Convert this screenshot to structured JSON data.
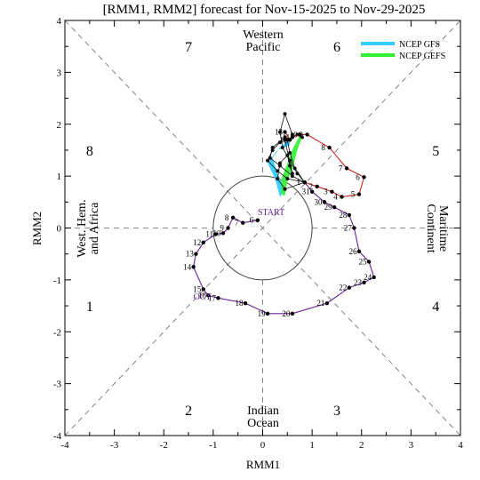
{
  "chart_data": {
    "type": "scatter",
    "title": "[RMM1, RMM2] forecast for Nov-15-2025 to Nov-29-2025",
    "xlabel": "RMM1",
    "ylabel": "RMM2",
    "xlim": [
      -4,
      4
    ],
    "ylim": [
      -4,
      4
    ],
    "xticks": [
      "-4",
      "-3",
      "-2",
      "-1",
      "0",
      "1",
      "2",
      "3",
      "4"
    ],
    "yticks": [
      "-4",
      "-3",
      "-2",
      "-1",
      "0",
      "1",
      "2",
      "3",
      "4"
    ],
    "grid": false,
    "legend_position": "top-right",
    "legend": [
      {
        "label": "NCEP GFS",
        "color": "#33ccff"
      },
      {
        "label": "NCEP GEFS",
        "color": "#33ee33"
      }
    ],
    "phase_numbers": [
      {
        "label": "1",
        "x": -3.5,
        "y": -1.5
      },
      {
        "label": "2",
        "x": -1.5,
        "y": -3.5
      },
      {
        "label": "3",
        "x": 1.5,
        "y": -3.5
      },
      {
        "label": "4",
        "x": 3.5,
        "y": -1.5
      },
      {
        "label": "5",
        "x": 3.5,
        "y": 1.5
      },
      {
        "label": "6",
        "x": 1.5,
        "y": 3.5
      },
      {
        "label": "7",
        "x": -1.5,
        "y": 3.5
      },
      {
        "label": "8",
        "x": -3.5,
        "y": 1.5
      }
    ],
    "region_labels": {
      "top": [
        "Western",
        "Pacific"
      ],
      "bottom": [
        "Indian",
        "Ocean"
      ],
      "left": [
        "West. Hem.",
        "and Africa"
      ],
      "right": [
        "Maritime",
        "Continent"
      ]
    },
    "annotations": [
      {
        "text": "START",
        "x": -0.1,
        "y": 0.25,
        "color": "#662299"
      },
      {
        "text": "OCT",
        "x": -1.4,
        "y": -1.38,
        "color": "#662299"
      }
    ],
    "observed": {
      "color": "#662299",
      "points": [
        {
          "label": "6",
          "x": -0.1,
          "y": 0.15
        },
        {
          "label": "7",
          "x": -0.4,
          "y": 0.1
        },
        {
          "label": "8",
          "x": -0.6,
          "y": 0.2
        },
        {
          "label": "9",
          "x": -0.7,
          "y": 0.0
        },
        {
          "label": "10",
          "x": -0.8,
          "y": -0.1
        },
        {
          "label": "11",
          "x": -0.95,
          "y": -0.12
        },
        {
          "label": "12",
          "x": -1.2,
          "y": -0.28
        },
        {
          "label": "13",
          "x": -1.35,
          "y": -0.5
        },
        {
          "label": "14",
          "x": -1.4,
          "y": -0.75
        },
        {
          "label": "15",
          "x": -1.2,
          "y": -1.18
        },
        {
          "label": "16",
          "x": -1.1,
          "y": -1.3
        },
        {
          "label": "17",
          "x": -0.9,
          "y": -1.35
        },
        {
          "label": "18",
          "x": -0.35,
          "y": -1.45
        },
        {
          "label": "19",
          "x": 0.1,
          "y": -1.65
        },
        {
          "label": "20",
          "x": 0.6,
          "y": -1.65
        },
        {
          "label": "21",
          "x": 1.3,
          "y": -1.45
        },
        {
          "label": "22",
          "x": 1.75,
          "y": -1.15
        },
        {
          "label": "23",
          "x": 2.05,
          "y": -1.05
        },
        {
          "label": "24",
          "x": 2.25,
          "y": -0.95
        },
        {
          "label": "25",
          "x": 2.15,
          "y": -0.65
        },
        {
          "label": "26",
          "x": 1.95,
          "y": -0.45
        },
        {
          "label": "27",
          "x": 1.85,
          "y": 0.0
        },
        {
          "label": "28",
          "x": 1.75,
          "y": 0.25
        },
        {
          "label": "29",
          "x": 1.45,
          "y": 0.4
        },
        {
          "label": "30",
          "x": 1.25,
          "y": 0.5
        },
        {
          "label": "31",
          "x": 1.0,
          "y": 0.7
        },
        {
          "label": "1",
          "x": 0.85,
          "y": 0.88
        }
      ]
    },
    "forecast": {
      "color": "#cc2222",
      "points": [
        {
          "label": "1",
          "x": 0.85,
          "y": 0.88
        },
        {
          "label": "2",
          "x": 1.1,
          "y": 0.8
        },
        {
          "label": "3",
          "x": 1.4,
          "y": 0.7
        },
        {
          "label": "4",
          "x": 1.6,
          "y": 0.6
        },
        {
          "label": "5",
          "x": 1.95,
          "y": 0.65
        },
        {
          "label": "6",
          "x": 2.05,
          "y": 0.98
        },
        {
          "label": "7",
          "x": 1.7,
          "y": 1.15
        },
        {
          "label": "8",
          "x": 1.35,
          "y": 1.55
        },
        {
          "label": "9",
          "x": 0.9,
          "y": 1.8
        },
        {
          "label": "10",
          "x": 0.75,
          "y": 1.8
        },
        {
          "label": "11",
          "x": 0.6,
          "y": 1.75
        },
        {
          "label": "12",
          "x": 0.55,
          "y": 1.7
        },
        {
          "label": "13",
          "x": 0.45,
          "y": 1.85
        }
      ]
    },
    "ensemble_members": [
      {
        "color": "#111111",
        "points": [
          [
            0.85,
            0.88
          ],
          [
            0.6,
            1.0
          ],
          [
            0.35,
            1.2
          ],
          [
            0.15,
            1.35
          ],
          [
            0.2,
            1.55
          ],
          [
            0.45,
            1.75
          ],
          [
            0.55,
            1.7
          ]
        ]
      },
      {
        "color": "#111111",
        "points": [
          [
            0.85,
            0.88
          ],
          [
            0.7,
            1.05
          ],
          [
            0.55,
            1.3
          ],
          [
            0.4,
            1.55
          ],
          [
            0.35,
            1.85
          ],
          [
            0.45,
            2.2
          ],
          [
            0.6,
            1.8
          ]
        ]
      },
      {
        "color": "#111111",
        "points": [
          [
            0.85,
            0.88
          ],
          [
            0.5,
            0.95
          ],
          [
            0.3,
            1.1
          ],
          [
            0.1,
            1.3
          ],
          [
            0.2,
            1.5
          ],
          [
            0.35,
            1.65
          ],
          [
            0.5,
            1.7
          ]
        ]
      },
      {
        "color": "#111111",
        "points": [
          [
            0.85,
            0.88
          ],
          [
            0.65,
            1.15
          ],
          [
            0.55,
            1.45
          ],
          [
            0.5,
            1.7
          ],
          [
            0.7,
            1.8
          ],
          [
            0.8,
            1.75
          ]
        ]
      },
      {
        "color": "#111111",
        "points": [
          [
            0.85,
            0.88
          ],
          [
            0.45,
            0.75
          ],
          [
            0.3,
            0.95
          ],
          [
            0.35,
            1.25
          ],
          [
            0.5,
            1.4
          ],
          [
            0.55,
            1.2
          ],
          [
            0.6,
            1.05
          ],
          [
            0.45,
            1.7
          ]
        ]
      }
    ],
    "gfs_band": [
      [
        0.35,
        0.6
      ],
      [
        0.25,
        0.95
      ],
      [
        0.1,
        1.25
      ],
      [
        0.3,
        1.5
      ],
      [
        0.55,
        1.6
      ],
      [
        0.55,
        1.72
      ],
      [
        0.35,
        1.55
      ],
      [
        0.2,
        1.35
      ],
      [
        0.3,
        1.05
      ],
      [
        0.45,
        0.75
      ]
    ],
    "gefs_band": [
      [
        0.45,
        0.62
      ],
      [
        0.5,
        0.9
      ],
      [
        0.62,
        1.2
      ],
      [
        0.7,
        1.5
      ],
      [
        0.8,
        1.75
      ],
      [
        0.75,
        1.78
      ],
      [
        0.62,
        1.55
      ],
      [
        0.5,
        1.25
      ],
      [
        0.38,
        0.95
      ],
      [
        0.38,
        0.65
      ]
    ]
  }
}
